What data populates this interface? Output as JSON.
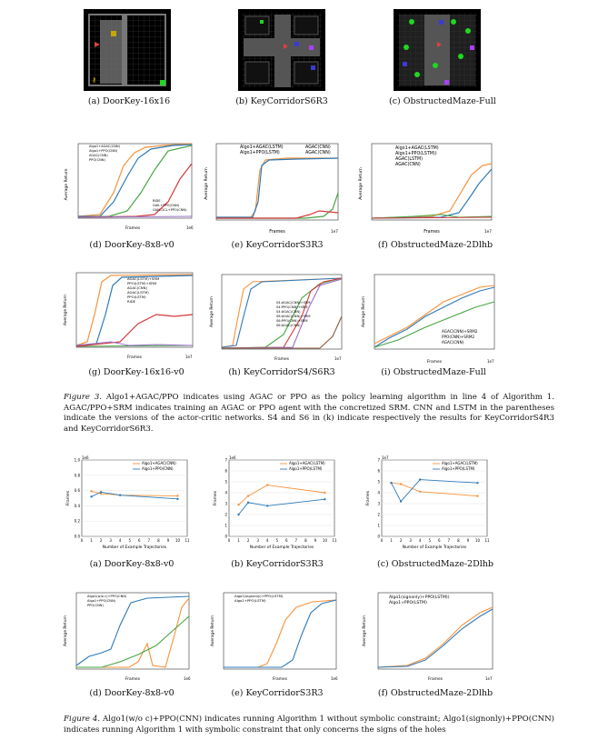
{
  "colors": {
    "orange": "#f7913a",
    "blue": "#2e7ab8",
    "green": "#47a545",
    "red": "#d6393a",
    "purple": "#9a6fcc",
    "brown": "#8c5a3c",
    "pink": "#e377c2",
    "gray": "#7f7f7f",
    "olive": "#bcbd22",
    "cyan": "#17becf"
  },
  "env_row": {
    "captions": [
      "(a) DoorKey-16x16",
      "(b) KeyCorridorS6R3",
      "(c) ObstructedMaze-Full"
    ]
  },
  "fig3_row1": {
    "captions": [
      "(d) DoorKey-8x8-v0",
      "(e) KeyCorridorS3R3",
      "(f) ObstructedMaze-2Dlhb"
    ],
    "p1": {
      "legend_top": [
        "Algo1+AGAC(CNN)",
        "Algo1+PPO(CNN)",
        "AGAC(CNN)",
        "PPO(CNN)"
      ],
      "legend_bottom": [
        "RIDE",
        "GAIL+PPO(CNN)",
        "GAN-GCL+PPO(CNN)"
      ],
      "xlabel": "Frames",
      "ylabel": "Average Return",
      "exp": "1e6",
      "xticks": [
        "0.0",
        "0.2",
        "0.4",
        "0.6",
        "0.8",
        "1.0"
      ],
      "yticks": [
        "0.0",
        "0.2",
        "0.4",
        "0.6",
        "0.8",
        "1.0"
      ]
    },
    "p2": {
      "legend": [
        "Algo1+AGAC(LSTM)",
        "Algo1+PPO(LSTM)",
        "AGAC(CNN)",
        "AGAC(CNN)"
      ],
      "xlabel": "Frames",
      "ylabel": "Average Return",
      "exp": "1e7",
      "xticks": [
        "0.0",
        "0.2",
        "0.4",
        "0.6",
        "0.8",
        "1.0"
      ],
      "yticks": [
        "0.0",
        "0.2",
        "0.4",
        "0.6",
        "0.8",
        "1.0",
        "1.2"
      ]
    },
    "p3": {
      "legend": [
        "Algo1+AGAC(LSTM)",
        "Algo1+PPO(LSTM))",
        "AGAC(LSTM)",
        "AGAC(CNN)"
      ],
      "xlabel": "Frames",
      "ylabel": "Average Return",
      "exp": "1e7",
      "xticks": [
        "0",
        "1",
        "2",
        "3",
        "4",
        "5"
      ],
      "yticks": [
        "0.0",
        "0.2",
        "0.4",
        "0.6",
        "0.8"
      ]
    }
  },
  "fig3_row2": {
    "captions": [
      "(g) DoorKey-16x16-v0",
      "(h) KeyCorridorS4/S6R3",
      "(i) ObstructedMaze-Full"
    ],
    "p1": {
      "legend": [
        "AGAC(LSTM)+SRM",
        "PPO(LSTM)+SRM",
        "AGAC(CNN)",
        "AGAC(LSTM)",
        "PPO(LSTM)",
        "RIDE"
      ],
      "xlabel": "Frames",
      "ylabel": "Average Return",
      "exp": "1e7",
      "xticks": [
        "0.0",
        "0.2",
        "0.4",
        "0.6",
        "0.8",
        "1.0"
      ],
      "yticks": [
        "0.0",
        "0.2",
        "0.4",
        "0.6",
        "0.8",
        "1.0"
      ]
    },
    "p2": {
      "legend": [
        "S4:AGAC(CNN)+SRM",
        "S4:PPO(CNN)+SRM",
        "S4:AGAC(CNN)",
        "S6:AGAC(CNN)+SRM",
        "S6:PPO(CNN)+SRM",
        "S6:AGAC(CNN)"
      ],
      "xlabel": "Frames",
      "ylabel": "Average Return",
      "exp": "1e7",
      "xticks": [
        "0.0",
        "0.5",
        "1.0",
        "1.5",
        "2.0",
        "2.5",
        "3.0"
      ],
      "yticks": [
        "0.0",
        "0.2",
        "0.4",
        "0.6",
        "0.8"
      ]
    },
    "p3": {
      "legend": [
        "AGAC(CNN)+SRM2",
        "PPO(CNN)+SRM2",
        "AGAC(CNN)"
      ],
      "xlabel": "Frames",
      "ylabel": "Average Return",
      "exp": "1e7",
      "xticks": [
        "0.00",
        "0.25",
        "0.50",
        "0.75",
        "1.00",
        "1.25",
        "1.50",
        "1.75",
        "2.00"
      ],
      "yticks": [
        "0.0",
        "0.2",
        "0.4",
        "0.6",
        "0.8"
      ]
    }
  },
  "fig3_caption": {
    "label": "Figure 3.",
    "text": "Algo1+AGAC/PPO indicates using AGAC or PPO as the policy learning algorithm in line 4 of Algorithm 1. AGAC/PPO+SRM indicates training an AGAC or PPO agent with the concretized SRM. CNN and LSTM in the parentheses indicate the versions of the actor-critic networks. S4 and S6 in (k) indicate respectively the results for KeyCorridorS4R3 and KeyCorridorS6R3."
  },
  "fig4_row1": {
    "captions": [
      "(a) DoorKey-8x8-v0",
      "(b) KeyCorridorS3R3",
      "(c) ObstructedMaze-2Dlhb"
    ],
    "p1": {
      "legend": [
        "Algo1+AGAC(CNN)",
        "Algo1+PPO(CNN)"
      ],
      "xlabel": "Number of Example Trajectories",
      "ylabel": "Frames",
      "exp": "1e6",
      "xticks": [
        "0",
        "1",
        "2",
        "3",
        "4",
        "5",
        "6",
        "7",
        "8",
        "9",
        "10",
        "11"
      ],
      "yticks": [
        "0.0",
        "0.2",
        "0.4",
        "0.6",
        "0.8",
        "1.0"
      ]
    },
    "p2": {
      "legend": [
        "Algo1+AGAC(LSTM)",
        "Algo1+PPO(LSTM)"
      ],
      "xlabel": "Number of Example Trajectories",
      "ylabel": "Frames",
      "exp": "1e6",
      "xticks": [
        "0",
        "1",
        "2",
        "3",
        "4",
        "5",
        "6",
        "7",
        "8",
        "9",
        "10",
        "11"
      ],
      "yticks": [
        "0",
        "1",
        "2",
        "3",
        "4",
        "5",
        "6",
        "7"
      ]
    },
    "p3": {
      "legend": [
        "Algo1+AGAC(LSTM)",
        "Algo1+PPO(LSTM)"
      ],
      "xlabel": "Number of Example Trajectories",
      "ylabel": "Frames",
      "exp": "1e7",
      "xticks": [
        "0",
        "1",
        "2",
        "3",
        "4",
        "5",
        "6",
        "7",
        "8",
        "9",
        "10",
        "11"
      ],
      "yticks": [
        "0",
        "1",
        "2",
        "3",
        "4",
        "5",
        "6",
        "7"
      ]
    }
  },
  "fig4_row2": {
    "captions": [
      "(d) DoorKey-8x8-v0",
      "(e) KeyCorridorS3R3",
      "(f) ObstructedMaze-2Dlhb"
    ],
    "p1": {
      "legend": [
        "Algo1(w/o c)+PPO(CNN)",
        "Algo1+PPO(CNN)",
        "PPO(CNN)"
      ],
      "xlabel": "Frames",
      "ylabel": "Average Return",
      "exp": "1e6",
      "xticks": [
        "0.0",
        "0.2",
        "0.4",
        "0.6",
        "0.8",
        "1.0"
      ],
      "yticks": [
        "0.0",
        "0.2",
        "0.4",
        "0.6",
        "0.8",
        "1.0"
      ]
    },
    "p2": {
      "legend": [
        "Algo1(signonly)+PPO(LSTM)",
        "Algo1+PPO(LSTM)"
      ],
      "xlabel": "Frames",
      "ylabel": "Average Return",
      "exp": "1e6",
      "xticks": [
        "0",
        "1",
        "2",
        "3",
        "4",
        "5"
      ],
      "yticks": [
        "0.0",
        "0.2",
        "0.4",
        "0.6",
        "0.8",
        "1.0"
      ]
    },
    "p3": {
      "legend": [
        "Algo1(signonly)+PPO(LSTM))",
        "Algo1+PPO(LSTM)"
      ],
      "xlabel": "Frames",
      "ylabel": "Average Return",
      "exp": "1e7",
      "xticks": [
        "0",
        "1",
        "2",
        "3",
        "4"
      ],
      "yticks": [
        "0.0",
        "0.2",
        "0.4",
        "0.6",
        "0.8"
      ]
    }
  },
  "fig4_caption": {
    "label": "Figure 4.",
    "text": "Algo1(w/o c)+PPO(CNN) indicates running Algorithm 1 without symbolic constraint; Algo1(signonly)+PPO(CNN) indicates running Algorithm 1 with symbolic constraint that only concerns the signs of the holes"
  },
  "chart_data": [
    {
      "type": "line",
      "panel": "fig4a",
      "xlabel": "Number of Example Trajectories",
      "ylabel": "Frames",
      "x": [
        1,
        2,
        4,
        10
      ],
      "series": [
        {
          "name": "Algo1+AGAC(CNN)",
          "values": [
            0.59,
            0.56,
            0.54,
            0.53
          ]
        },
        {
          "name": "Algo1+PPO(CNN)",
          "values": [
            0.52,
            0.58,
            0.54,
            0.49
          ]
        }
      ],
      "ylim": [
        0,
        1.0
      ],
      "xlim": [
        0,
        11
      ]
    },
    {
      "type": "line",
      "panel": "fig4b",
      "xlabel": "Number of Example Trajectories",
      "ylabel": "Frames",
      "x": [
        1,
        2,
        4,
        10
      ],
      "series": [
        {
          "name": "Algo1+AGAC(LSTM)",
          "values": [
            2.9,
            3.7,
            4.7,
            4.0
          ]
        },
        {
          "name": "Algo1+PPO(LSTM)",
          "values": [
            2.0,
            3.1,
            2.8,
            3.4
          ]
        }
      ],
      "ylim": [
        0,
        7
      ],
      "xlim": [
        0,
        11
      ]
    },
    {
      "type": "line",
      "panel": "fig4c",
      "xlabel": "Number of Example Trajectories",
      "ylabel": "Frames",
      "x": [
        1,
        2,
        4,
        10
      ],
      "series": [
        {
          "name": "Algo1+AGAC(LSTM)",
          "values": [
            4.9,
            4.8,
            4.1,
            3.7
          ]
        },
        {
          "name": "Algo1+PPO(LSTM)",
          "values": [
            4.9,
            3.2,
            5.2,
            4.9
          ]
        }
      ],
      "ylim": [
        0,
        7
      ],
      "xlim": [
        0,
        11
      ]
    }
  ]
}
